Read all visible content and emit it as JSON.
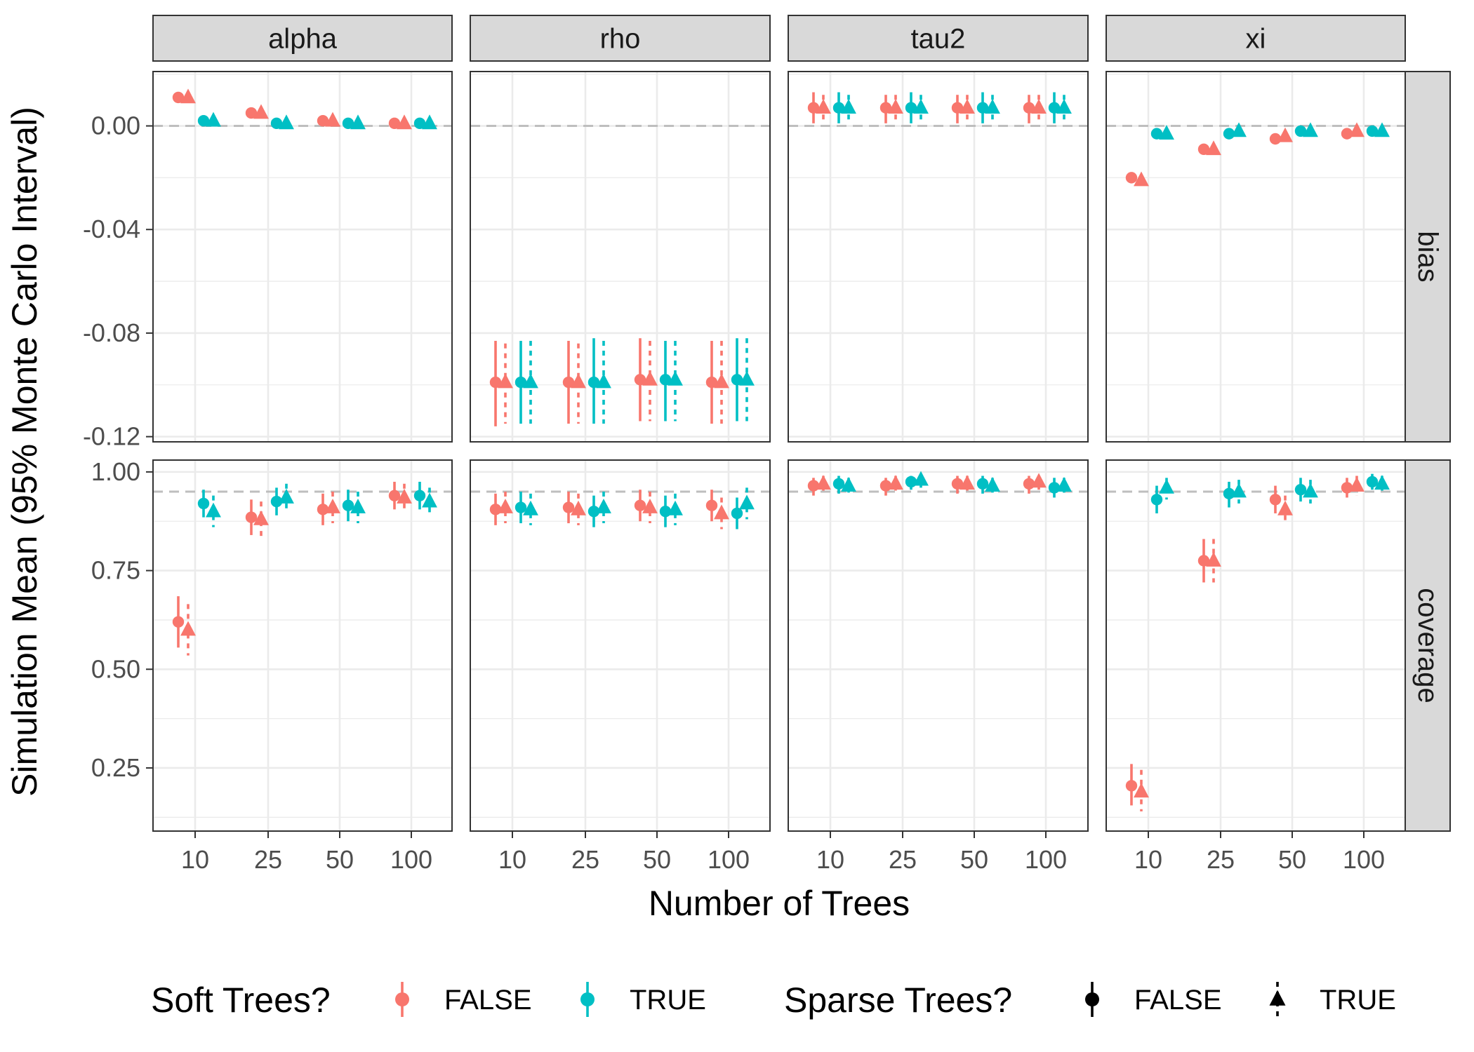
{
  "chart_data": {
    "type": "scatter",
    "subtype": "faceted point-range plot",
    "ylabel": "Simulation Mean (95% Monte Carlo Interval)",
    "xlabel": "Number of Trees",
    "x_categories": [
      "10",
      "25",
      "50",
      "100"
    ],
    "facet_columns": [
      "alpha",
      "rho",
      "tau2",
      "xi"
    ],
    "facet_rows": [
      "bias",
      "coverage"
    ],
    "y_axis": {
      "bias": {
        "ylim": [
          -0.122,
          0.021
        ],
        "ticks": [
          0.0,
          -0.04,
          -0.08,
          -0.12
        ],
        "tick_labels": [
          "0.00",
          "-0.04",
          "-0.08",
          "-0.12"
        ],
        "reference_line": 0.0
      },
      "coverage": {
        "ylim": [
          0.09,
          1.03
        ],
        "ticks": [
          1.0,
          0.75,
          0.5,
          0.25
        ],
        "tick_labels": [
          "1.00",
          "0.75",
          "0.50",
          "0.25"
        ],
        "reference_line": 0.95
      }
    },
    "colors": {
      "soft_false": "#F8766D",
      "soft_true": "#00BFC4",
      "reference_line": "#BEBEBE",
      "strip_fill": "#D9D9D9",
      "grid": "#EBEBEB"
    },
    "legend": {
      "position": "bottom",
      "soft": {
        "title": "Soft Trees?",
        "entries": [
          {
            "label": "FALSE",
            "color": "#F8766D"
          },
          {
            "label": "TRUE",
            "color": "#00BFC4"
          }
        ]
      },
      "sparse": {
        "title": "Sparse Trees?",
        "entries": [
          {
            "label": "FALSE",
            "shape": "circle",
            "linetype": "solid"
          },
          {
            "label": "TRUE",
            "shape": "triangle",
            "linetype": "dotted"
          }
        ]
      }
    },
    "group_order": [
      "FALSE/FALSE",
      "FALSE/TRUE",
      "TRUE/FALSE",
      "TRUE/TRUE"
    ],
    "group_note": "Each group is soft/sparse; value entries are [mean, lower, upper]",
    "panels": {
      "bias": {
        "alpha": {
          "10": [
            [
              0.011,
              0.011,
              0.011
            ],
            [
              0.011,
              0.011,
              0.011
            ],
            [
              0.002,
              0.002,
              0.002
            ],
            [
              0.002,
              0.002,
              0.002
            ]
          ],
          "25": [
            [
              0.005,
              0.005,
              0.005
            ],
            [
              0.005,
              0.005,
              0.005
            ],
            [
              0.001,
              0.001,
              0.001
            ],
            [
              0.001,
              0.001,
              0.001
            ]
          ],
          "50": [
            [
              0.002,
              0.002,
              0.002
            ],
            [
              0.002,
              0.002,
              0.002
            ],
            [
              0.001,
              0.001,
              0.001
            ],
            [
              0.001,
              0.001,
              0.001
            ]
          ],
          "100": [
            [
              0.001,
              0.0,
              0.002
            ],
            [
              0.001,
              0.0,
              0.002
            ],
            [
              0.001,
              0.001,
              0.002
            ],
            [
              0.001,
              0.001,
              0.002
            ]
          ]
        },
        "rho": {
          "10": [
            [
              -0.099,
              -0.116,
              -0.083
            ],
            [
              -0.099,
              -0.115,
              -0.084
            ],
            [
              -0.099,
              -0.115,
              -0.083
            ],
            [
              -0.099,
              -0.115,
              -0.083
            ]
          ],
          "25": [
            [
              -0.099,
              -0.115,
              -0.083
            ],
            [
              -0.099,
              -0.115,
              -0.084
            ],
            [
              -0.099,
              -0.115,
              -0.082
            ],
            [
              -0.099,
              -0.115,
              -0.083
            ]
          ],
          "50": [
            [
              -0.098,
              -0.114,
              -0.082
            ],
            [
              -0.098,
              -0.114,
              -0.083
            ],
            [
              -0.098,
              -0.114,
              -0.083
            ],
            [
              -0.098,
              -0.114,
              -0.083
            ]
          ],
          "100": [
            [
              -0.099,
              -0.115,
              -0.083
            ],
            [
              -0.099,
              -0.115,
              -0.083
            ],
            [
              -0.098,
              -0.114,
              -0.082
            ],
            [
              -0.098,
              -0.114,
              -0.082
            ]
          ]
        },
        "tau2": {
          "10": [
            [
              0.007,
              0.001,
              0.013
            ],
            [
              0.007,
              0.001,
              0.012
            ],
            [
              0.007,
              0.001,
              0.013
            ],
            [
              0.007,
              0.001,
              0.012
            ]
          ],
          "25": [
            [
              0.007,
              0.001,
              0.012
            ],
            [
              0.007,
              0.001,
              0.012
            ],
            [
              0.007,
              0.001,
              0.013
            ],
            [
              0.007,
              0.001,
              0.012
            ]
          ],
          "50": [
            [
              0.007,
              0.001,
              0.012
            ],
            [
              0.007,
              0.001,
              0.012
            ],
            [
              0.007,
              0.001,
              0.013
            ],
            [
              0.007,
              0.001,
              0.012
            ]
          ],
          "100": [
            [
              0.007,
              0.001,
              0.012
            ],
            [
              0.007,
              0.001,
              0.012
            ],
            [
              0.007,
              0.001,
              0.013
            ],
            [
              0.007,
              0.001,
              0.012
            ]
          ]
        },
        "xi": {
          "10": [
            [
              -0.02,
              -0.021,
              -0.019
            ],
            [
              -0.021,
              -0.022,
              -0.02
            ],
            [
              -0.003,
              -0.004,
              -0.003
            ],
            [
              -0.003,
              -0.004,
              -0.003
            ]
          ],
          "25": [
            [
              -0.009,
              -0.01,
              -0.009
            ],
            [
              -0.009,
              -0.01,
              -0.008
            ],
            [
              -0.003,
              -0.003,
              -0.002
            ],
            [
              -0.002,
              -0.003,
              -0.002
            ]
          ],
          "50": [
            [
              -0.005,
              -0.005,
              -0.004
            ],
            [
              -0.004,
              -0.005,
              -0.004
            ],
            [
              -0.002,
              -0.003,
              -0.002
            ],
            [
              -0.002,
              -0.002,
              -0.001
            ]
          ],
          "100": [
            [
              -0.003,
              -0.003,
              -0.002
            ],
            [
              -0.002,
              -0.003,
              -0.002
            ],
            [
              -0.002,
              -0.002,
              -0.001
            ],
            [
              -0.002,
              -0.002,
              -0.001
            ]
          ]
        }
      },
      "coverage": {
        "alpha": {
          "10": [
            [
              0.62,
              0.555,
              0.685
            ],
            [
              0.6,
              0.535,
              0.665
            ],
            [
              0.92,
              0.885,
              0.955
            ],
            [
              0.9,
              0.86,
              0.94
            ]
          ],
          "25": [
            [
              0.885,
              0.84,
              0.93
            ],
            [
              0.88,
              0.835,
              0.925
            ],
            [
              0.925,
              0.89,
              0.96
            ],
            [
              0.935,
              0.9,
              0.97
            ]
          ],
          "50": [
            [
              0.905,
              0.865,
              0.945
            ],
            [
              0.91,
              0.87,
              0.95
            ],
            [
              0.915,
              0.875,
              0.955
            ],
            [
              0.91,
              0.87,
              0.95
            ]
          ],
          "100": [
            [
              0.94,
              0.905,
              0.975
            ],
            [
              0.935,
              0.9,
              0.97
            ],
            [
              0.94,
              0.905,
              0.975
            ],
            [
              0.925,
              0.89,
              0.96
            ]
          ]
        },
        "rho": {
          "10": [
            [
              0.905,
              0.865,
              0.945
            ],
            [
              0.91,
              0.87,
              0.95
            ],
            [
              0.91,
              0.87,
              0.95
            ],
            [
              0.905,
              0.865,
              0.945
            ]
          ],
          "25": [
            [
              0.91,
              0.87,
              0.95
            ],
            [
              0.905,
              0.865,
              0.945
            ],
            [
              0.9,
              0.86,
              0.94
            ],
            [
              0.91,
              0.87,
              0.95
            ]
          ],
          "50": [
            [
              0.915,
              0.875,
              0.955
            ],
            [
              0.91,
              0.87,
              0.95
            ],
            [
              0.9,
              0.86,
              0.94
            ],
            [
              0.905,
              0.865,
              0.945
            ]
          ],
          "100": [
            [
              0.915,
              0.875,
              0.955
            ],
            [
              0.895,
              0.855,
              0.935
            ],
            [
              0.895,
              0.855,
              0.935
            ],
            [
              0.92,
              0.88,
              0.96
            ]
          ]
        },
        "tau2": {
          "10": [
            [
              0.965,
              0.94,
              0.985
            ],
            [
              0.97,
              0.945,
              0.99
            ],
            [
              0.97,
              0.945,
              0.99
            ],
            [
              0.965,
              0.94,
              0.985
            ]
          ],
          "25": [
            [
              0.965,
              0.94,
              0.985
            ],
            [
              0.97,
              0.945,
              0.99
            ],
            [
              0.975,
              0.955,
              0.99
            ],
            [
              0.98,
              0.96,
              0.995
            ]
          ],
          "50": [
            [
              0.97,
              0.945,
              0.99
            ],
            [
              0.97,
              0.945,
              0.99
            ],
            [
              0.97,
              0.945,
              0.99
            ],
            [
              0.965,
              0.94,
              0.985
            ]
          ],
          "100": [
            [
              0.97,
              0.945,
              0.99
            ],
            [
              0.975,
              0.955,
              0.99
            ],
            [
              0.96,
              0.935,
              0.985
            ],
            [
              0.965,
              0.94,
              0.985
            ]
          ]
        },
        "xi": {
          "10": [
            [
              0.205,
              0.155,
              0.26
            ],
            [
              0.19,
              0.14,
              0.245
            ],
            [
              0.93,
              0.895,
              0.965
            ],
            [
              0.96,
              0.93,
              0.985
            ]
          ],
          "25": [
            [
              0.775,
              0.72,
              0.83
            ],
            [
              0.775,
              0.72,
              0.83
            ],
            [
              0.945,
              0.91,
              0.975
            ],
            [
              0.95,
              0.92,
              0.98
            ]
          ],
          "50": [
            [
              0.93,
              0.895,
              0.965
            ],
            [
              0.905,
              0.87,
              0.94
            ],
            [
              0.955,
              0.925,
              0.985
            ],
            [
              0.95,
              0.92,
              0.98
            ]
          ],
          "100": [
            [
              0.96,
              0.935,
              0.985
            ],
            [
              0.965,
              0.94,
              0.99
            ],
            [
              0.975,
              0.955,
              0.995
            ],
            [
              0.97,
              0.95,
              0.99
            ]
          ]
        }
      }
    }
  }
}
